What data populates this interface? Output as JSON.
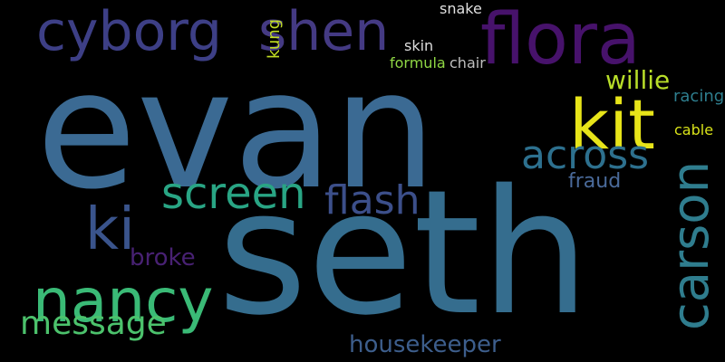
{
  "words": [
    {
      "text": "evan",
      "color": "#3b6a93"
    },
    {
      "text": "seth",
      "color": "#356d8e"
    },
    {
      "text": "flora",
      "color": "#47126b"
    },
    {
      "text": "cyborg",
      "color": "#3d3f86"
    },
    {
      "text": "shen",
      "color": "#443a83"
    },
    {
      "text": "kit",
      "color": "#e7e419"
    },
    {
      "text": "nancy",
      "color": "#3aba76"
    },
    {
      "text": "carson",
      "color": "#2f7d8e"
    },
    {
      "text": "screen",
      "color": "#29a584"
    },
    {
      "text": "flash",
      "color": "#3c4f8a"
    },
    {
      "text": "across",
      "color": "#2d708e"
    },
    {
      "text": "message",
      "color": "#4cc26c"
    },
    {
      "text": "ki",
      "color": "#3a548c"
    },
    {
      "text": "housekeeper",
      "color": "#3d5e8c"
    },
    {
      "text": "willie",
      "color": "#b8de29"
    },
    {
      "text": "broke",
      "color": "#482173"
    },
    {
      "text": "fraud",
      "color": "#4a6a9a"
    },
    {
      "text": "kung",
      "color": "#c2df23"
    },
    {
      "text": "snake",
      "color": "#e0e0e0"
    },
    {
      "text": "skin",
      "color": "#dddddd"
    },
    {
      "text": "formula",
      "color": "#8fd744"
    },
    {
      "text": "chair",
      "color": "#bfbfbf"
    },
    {
      "text": "racing",
      "color": "#2e7e8e"
    },
    {
      "text": "cable",
      "color": "#d8e219"
    }
  ]
}
